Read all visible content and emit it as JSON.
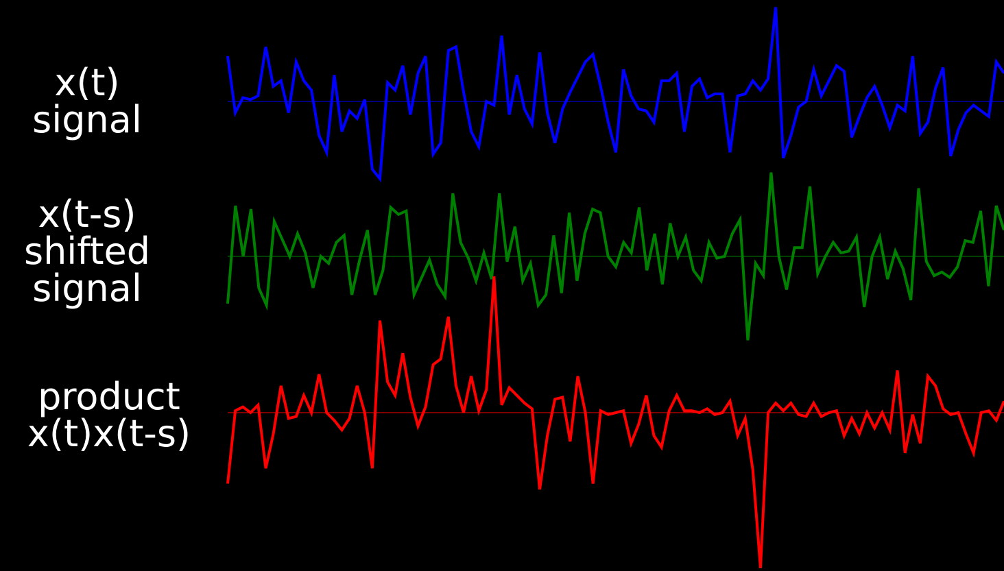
{
  "labels": {
    "signal": [
      "x(t)",
      "signal"
    ],
    "shifted": [
      "x(t-s)",
      "shifted",
      "signal"
    ],
    "product": [
      "product",
      "x(t)x(t-s)"
    ]
  },
  "chart_data": {
    "type": "line",
    "grid": false,
    "series": [
      {
        "color": "#0000ff",
        "values": [
          2.4,
          -0.6,
          0.2,
          0.1,
          0.3,
          2.9,
          0.8,
          1.1,
          -0.6,
          2.1,
          1.1,
          0.6,
          -1.8,
          -2.7,
          1.4,
          -1.6,
          -0.5,
          -0.9,
          0.1,
          -3.6,
          -4.1,
          1.0,
          0.6,
          1.9,
          -0.7,
          1.5,
          2.4,
          -2.8,
          -2.2,
          2.7,
          2.9,
          0.5,
          -1.6,
          -2.4,
          0.0,
          -0.2,
          3.5,
          -0.7,
          1.4,
          -0.4,
          -1.2,
          2.6,
          -0.6,
          -2.2,
          -0.4,
          0.5,
          1.3,
          2.1,
          2.5,
          0.8,
          -1.1,
          -2.7,
          1.7,
          0.3,
          -0.4,
          -0.5,
          -1.1,
          1.1,
          1.1,
          1.5,
          -1.6,
          0.8,
          1.2,
          0.2,
          0.4,
          0.4,
          -2.7,
          0.3,
          0.4,
          1.1,
          0.6,
          1.2,
          5.0,
          -3.0,
          -1.8,
          -0.3,
          0.0,
          1.7,
          0.3,
          1.1,
          1.9,
          1.6,
          -1.9,
          -0.8,
          0.2,
          0.8,
          -0.2,
          -1.4,
          -0.2,
          -0.5,
          2.4,
          -1.7,
          -1.1,
          0.7,
          1.8,
          -2.9,
          -1.5,
          -0.6,
          -0.2,
          -0.5,
          -0.8,
          2.1,
          1.5
        ]
      },
      {
        "color": "#008000",
        "values": [
          -2.7,
          2.9,
          0.0,
          2.7,
          -1.8,
          -2.8,
          2.0,
          1.0,
          0.0,
          1.3,
          0.2,
          -1.8,
          0.0,
          -0.4,
          0.8,
          1.2,
          -2.2,
          -0.2,
          1.5,
          -2.2,
          -0.8,
          2.8,
          2.4,
          2.6,
          -2.2,
          -1.2,
          -0.2,
          -1.6,
          -2.3,
          3.6,
          0.8,
          -0.1,
          -1.4,
          0.2,
          -1.3,
          3.6,
          -0.3,
          1.7,
          -1.4,
          -0.4,
          -2.8,
          -2.2,
          1.2,
          -2.1,
          2.5,
          -1.4,
          1.3,
          2.7,
          2.5,
          0.0,
          -0.6,
          0.8,
          0.2,
          2.8,
          -0.8,
          1.3,
          -1.6,
          1.9,
          0.0,
          1.1,
          -0.8,
          -1.4,
          0.8,
          -0.1,
          0.0,
          1.3,
          2.1,
          -4.8,
          -0.4,
          -1.1,
          4.8,
          0.0,
          -1.9,
          0.5,
          0.5,
          4.0,
          -1.0,
          0.0,
          0.8,
          0.2,
          0.3,
          1.1,
          -2.9,
          0.0,
          1.1,
          -1.3,
          0.3,
          -0.7,
          -2.5,
          3.9,
          -0.3,
          -1.1,
          -0.9,
          -1.2,
          -0.6,
          0.9,
          0.8,
          2.6,
          -1.7,
          2.9,
          1.5
        ]
      },
      {
        "color": "#ff0000",
        "values": [
          -3.7,
          0.1,
          0.3,
          0.0,
          0.4,
          -2.9,
          -1.1,
          1.4,
          -0.3,
          -0.2,
          0.9,
          0.0,
          2.0,
          0.0,
          -0.4,
          -0.9,
          -0.3,
          1.4,
          0.0,
          -2.9,
          4.8,
          1.6,
          0.9,
          3.1,
          0.8,
          -0.7,
          0.3,
          2.5,
          2.8,
          5.0,
          1.4,
          0.0,
          1.9,
          0.1,
          1.2,
          7.1,
          0.4,
          1.3,
          0.9,
          0.5,
          0.2,
          -4.0,
          -1.2,
          0.7,
          0.8,
          -1.5,
          1.9,
          0.0,
          -3.7,
          0.1,
          -0.1,
          0.0,
          0.1,
          -1.6,
          -0.6,
          0.9,
          -1.2,
          -1.8,
          0.1,
          0.9,
          0.1,
          0.1,
          0.0,
          0.2,
          -0.1,
          0.0,
          0.6,
          -1.2,
          -0.3,
          -3.0,
          -8.1,
          0.0,
          0.5,
          0.1,
          0.5,
          -0.1,
          -0.2,
          0.5,
          -0.2,
          0.0,
          0.1,
          -1.2,
          -0.3,
          -1.1,
          0.0,
          -0.8,
          0.0,
          -0.9,
          2.2,
          -2.1,
          -0.1,
          -1.6,
          1.9,
          1.4,
          0.2,
          -0.1,
          0.0,
          -1.1,
          -2.1,
          0.0,
          0.1,
          -0.4,
          0.6
        ]
      }
    ]
  }
}
